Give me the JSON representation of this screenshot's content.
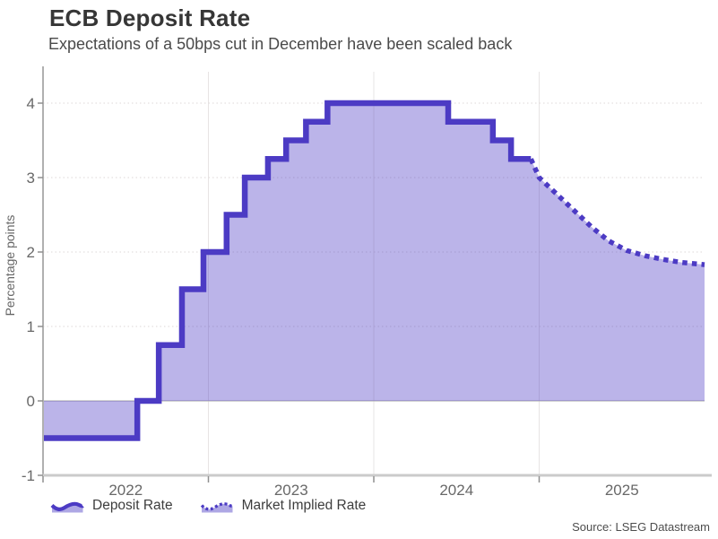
{
  "header": {
    "title": "ECB Deposit Rate",
    "subtitle": "Expectations of a 50bps cut in December have been scaled back"
  },
  "legend": {
    "items": [
      {
        "label": "Deposit Rate",
        "style": "solid"
      },
      {
        "label": "Market Implied Rate",
        "style": "dotted"
      }
    ]
  },
  "footer": {
    "source": "Source: LSEG Datastream"
  },
  "chart_data": {
    "type": "area",
    "title": "ECB Deposit Rate",
    "subtitle": "Expectations of a 50bps cut in December have been scaled back",
    "ylabel": "Percentage points",
    "xlabel": "",
    "ylim": [
      -1,
      4
    ],
    "yticks": [
      -1,
      0,
      1,
      2,
      3,
      4
    ],
    "xlim": [
      2022,
      2026
    ],
    "xticks": [
      2022,
      2023,
      2024,
      2025
    ],
    "xtick_labels": [
      "2022",
      "2023",
      "2024",
      "2025"
    ],
    "grid": true,
    "legend_position": "bottom",
    "series": [
      {
        "name": "Deposit Rate",
        "style": "step-solid",
        "points": [
          [
            2022.0,
            -0.5
          ],
          [
            2022.57,
            0.0
          ],
          [
            2022.7,
            0.75
          ],
          [
            2022.84,
            1.5
          ],
          [
            2022.97,
            2.0
          ],
          [
            2023.11,
            2.5
          ],
          [
            2023.22,
            3.0
          ],
          [
            2023.36,
            3.25
          ],
          [
            2023.47,
            3.5
          ],
          [
            2023.59,
            3.75
          ],
          [
            2023.72,
            4.0
          ],
          [
            2024.45,
            3.75
          ],
          [
            2024.72,
            3.5
          ],
          [
            2024.83,
            3.25
          ],
          [
            2024.95,
            3.25
          ]
        ]
      },
      {
        "name": "Market Implied Rate",
        "style": "dotted",
        "points": [
          [
            2024.95,
            3.25
          ],
          [
            2025.0,
            3.0
          ],
          [
            2025.1,
            2.79
          ],
          [
            2025.21,
            2.56
          ],
          [
            2025.32,
            2.33
          ],
          [
            2025.42,
            2.15
          ],
          [
            2025.53,
            2.02
          ],
          [
            2025.64,
            1.95
          ],
          [
            2025.75,
            1.9
          ],
          [
            2025.86,
            1.86
          ],
          [
            2026.0,
            1.83
          ]
        ]
      }
    ],
    "colors": {
      "line": "#4c3bc4",
      "fill_opacity": 0.38,
      "grid": "#e4dfdf",
      "vgrid": "#e7e4e4",
      "zero_line": "#b9b9b9",
      "y_axis": "#b0b0b0",
      "x_axis": "#cbcbcb",
      "tick": "#8f8f8f",
      "tick_text": "#686868"
    }
  }
}
